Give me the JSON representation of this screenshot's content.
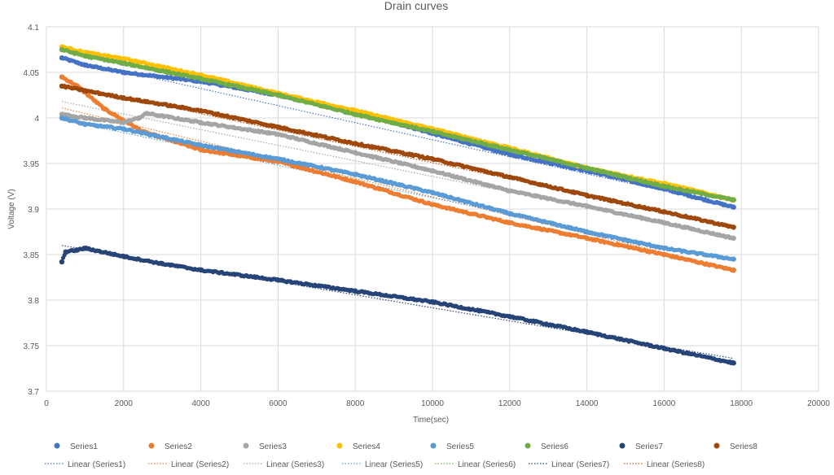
{
  "chart_data": {
    "type": "scatter",
    "title": "Drain curves",
    "xlabel": "Time(sec)",
    "ylabel": "Voltage (V)",
    "xlim": [
      0,
      20000
    ],
    "ylim": [
      3.7,
      4.1
    ],
    "x_ticks": [
      "0",
      "2000",
      "4000",
      "6000",
      "8000",
      "10000",
      "12000",
      "14000",
      "16000",
      "18000",
      "20000"
    ],
    "y_ticks": [
      "3.7",
      "3.75",
      "3.8",
      "3.85",
      "3.9",
      "3.95",
      "4",
      "4.05",
      "4.1"
    ],
    "grid": true,
    "legend_position": "bottom",
    "series": [
      {
        "name": "Series1",
        "color": "#4472C4",
        "points": [
          [
            400,
            4.066
          ],
          [
            1000,
            4.058
          ],
          [
            2000,
            4.05
          ],
          [
            4000,
            4.04
          ],
          [
            6000,
            4.025
          ],
          [
            8000,
            4.007
          ],
          [
            10000,
            3.983
          ],
          [
            12000,
            3.96
          ],
          [
            14000,
            3.942
          ],
          [
            16000,
            3.922
          ],
          [
            17800,
            3.902
          ]
        ]
      },
      {
        "name": "Series2",
        "color": "#ED7D31",
        "points": [
          [
            400,
            4.045
          ],
          [
            800,
            4.035
          ],
          [
            1500,
            4.01
          ],
          [
            2500,
            3.985
          ],
          [
            4000,
            3.965
          ],
          [
            6000,
            3.952
          ],
          [
            8000,
            3.93
          ],
          [
            10000,
            3.905
          ],
          [
            12000,
            3.885
          ],
          [
            14000,
            3.868
          ],
          [
            16000,
            3.85
          ],
          [
            17800,
            3.833
          ]
        ]
      },
      {
        "name": "Series3",
        "color": "#A5A5A5",
        "points": [
          [
            400,
            4.004
          ],
          [
            1000,
            4.0
          ],
          [
            2000,
            3.995
          ],
          [
            2400,
            4.0
          ],
          [
            2600,
            4.005
          ],
          [
            4000,
            3.995
          ],
          [
            6000,
            3.982
          ],
          [
            8000,
            3.962
          ],
          [
            10000,
            3.942
          ],
          [
            12000,
            3.92
          ],
          [
            14000,
            3.903
          ],
          [
            16000,
            3.885
          ],
          [
            17800,
            3.868
          ]
        ]
      },
      {
        "name": "Series4",
        "color": "#FFC000",
        "points": [
          [
            400,
            4.078
          ],
          [
            1000,
            4.072
          ],
          [
            2000,
            4.065
          ],
          [
            4000,
            4.047
          ],
          [
            6000,
            4.027
          ],
          [
            8000,
            4.008
          ],
          [
            10000,
            3.988
          ],
          [
            12000,
            3.967
          ],
          [
            14000,
            3.945
          ],
          [
            16000,
            3.928
          ],
          [
            17800,
            3.91
          ]
        ]
      },
      {
        "name": "Series5",
        "color": "#5B9BD5",
        "points": [
          [
            400,
            4.0
          ],
          [
            1000,
            3.993
          ],
          [
            2000,
            3.988
          ],
          [
            4000,
            3.97
          ],
          [
            6000,
            3.955
          ],
          [
            8000,
            3.938
          ],
          [
            10000,
            3.918
          ],
          [
            12000,
            3.895
          ],
          [
            14000,
            3.875
          ],
          [
            16000,
            3.857
          ],
          [
            17800,
            3.845
          ]
        ]
      },
      {
        "name": "Series6",
        "color": "#70AD47",
        "points": [
          [
            400,
            4.075
          ],
          [
            1000,
            4.068
          ],
          [
            2000,
            4.06
          ],
          [
            4000,
            4.043
          ],
          [
            6000,
            4.025
          ],
          [
            8000,
            4.004
          ],
          [
            10000,
            3.985
          ],
          [
            12000,
            3.965
          ],
          [
            14000,
            3.945
          ],
          [
            16000,
            3.925
          ],
          [
            17800,
            3.91
          ]
        ]
      },
      {
        "name": "Series7",
        "color": "#264478",
        "points": [
          [
            400,
            3.842
          ],
          [
            500,
            3.853
          ],
          [
            800,
            3.855
          ],
          [
            1000,
            3.857
          ],
          [
            2000,
            3.848
          ],
          [
            3000,
            3.84
          ],
          [
            4000,
            3.833
          ],
          [
            6000,
            3.822
          ],
          [
            8000,
            3.81
          ],
          [
            10000,
            3.798
          ],
          [
            12000,
            3.782
          ],
          [
            14000,
            3.765
          ],
          [
            16000,
            3.747
          ],
          [
            17800,
            3.731
          ]
        ]
      },
      {
        "name": "Series8",
        "color": "#9E480E",
        "points": [
          [
            400,
            4.035
          ],
          [
            1000,
            4.03
          ],
          [
            2000,
            4.022
          ],
          [
            4000,
            4.008
          ],
          [
            6000,
            3.99
          ],
          [
            8000,
            3.972
          ],
          [
            10000,
            3.955
          ],
          [
            12000,
            3.935
          ],
          [
            14000,
            3.915
          ],
          [
            16000,
            3.897
          ],
          [
            17800,
            3.88
          ]
        ]
      }
    ],
    "trendlines": [
      {
        "name": "Linear (Series1)",
        "series": "Series1",
        "color": "#4472C4",
        "start": [
          400,
          4.066
        ],
        "end": [
          17800,
          3.903
        ]
      },
      {
        "name": "Linear (Series2)",
        "series": "Series2",
        "color": "#ED7D31",
        "start": [
          400,
          4.011
        ],
        "end": [
          17800,
          3.834
        ]
      },
      {
        "name": "Linear (Series3)",
        "series": "Series3",
        "color": "#A5A5A5",
        "start": [
          400,
          4.018
        ],
        "end": [
          17800,
          3.869
        ]
      },
      {
        "name": "Linear (Series5)",
        "series": "Series5",
        "color": "#5B9BD5",
        "start": [
          400,
          3.998
        ],
        "end": [
          17800,
          3.843
        ]
      },
      {
        "name": "Linear (Series6)",
        "series": "Series6",
        "color": "#70AD47",
        "start": [
          400,
          4.077
        ],
        "end": [
          17800,
          3.91
        ]
      },
      {
        "name": "Linear (Series7)",
        "series": "Series7",
        "color": "#264478",
        "start": [
          400,
          3.86
        ],
        "end": [
          17800,
          3.736
        ]
      },
      {
        "name": "Linear (Series8)",
        "series": "Series8",
        "color": "#C55A11",
        "start": [
          400,
          4.037
        ],
        "end": [
          17800,
          3.881
        ]
      }
    ]
  }
}
